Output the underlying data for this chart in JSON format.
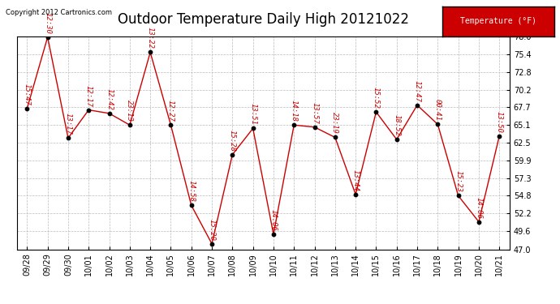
{
  "title": "Outdoor Temperature Daily High 20121022",
  "copyright": "Copyright 2012 Cartronics.com",
  "legend_label": "Temperature (°F)",
  "legend_bg": "#cc0000",
  "legend_text_color": "#ffffff",
  "xlabels": [
    "09/28",
    "09/29",
    "09/30",
    "10/01",
    "10/02",
    "10/03",
    "10/04",
    "10/05",
    "10/06",
    "10/07",
    "10/08",
    "10/09",
    "10/10",
    "10/11",
    "10/12",
    "10/13",
    "10/14",
    "10/15",
    "10/16",
    "10/17",
    "10/18",
    "10/19",
    "10/20",
    "10/21"
  ],
  "values": [
    67.5,
    77.9,
    63.2,
    67.3,
    66.8,
    65.1,
    75.7,
    65.1,
    53.4,
    47.8,
    60.8,
    64.6,
    49.2,
    65.1,
    64.8,
    63.3,
    55.0,
    67.0,
    63.0,
    68.0,
    65.2,
    54.8,
    51.0,
    63.5
  ],
  "time_labels": [
    "15:47",
    "12:30",
    "13:17",
    "12:17",
    "12:42",
    "23:13",
    "13:22",
    "12:27",
    "14:58",
    "15:20",
    "15:28",
    "13:51",
    "14:06",
    "14:18",
    "13:57",
    "23:19",
    "13:44",
    "15:52",
    "18:52",
    "12:47",
    "00:41",
    "15:23",
    "14:06",
    "13:50"
  ],
  "ylim": [
    47.0,
    78.0
  ],
  "yticks": [
    47.0,
    49.6,
    52.2,
    54.8,
    57.3,
    59.9,
    62.5,
    65.1,
    67.7,
    70.2,
    72.8,
    75.4,
    78.0
  ],
  "line_color": "#cc0000",
  "dot_color": "#000000",
  "bg_color": "#ffffff",
  "grid_color": "#bbbbbb",
  "title_fontsize": 12,
  "label_fontsize": 7,
  "time_label_fontsize": 6.5,
  "time_label_color": "#cc0000"
}
